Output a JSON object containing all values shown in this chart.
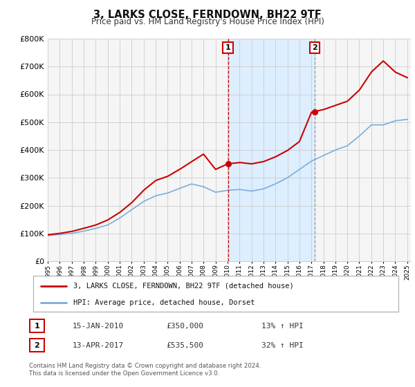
{
  "title": "3, LARKS CLOSE, FERNDOWN, BH22 9TF",
  "subtitle": "Price paid vs. HM Land Registry's House Price Index (HPI)",
  "ylim": [
    0,
    800000
  ],
  "yticks": [
    0,
    100000,
    200000,
    300000,
    400000,
    500000,
    600000,
    700000,
    800000
  ],
  "ytick_labels": [
    "£0",
    "£100K",
    "£200K",
    "£300K",
    "£400K",
    "£500K",
    "£600K",
    "£700K",
    "£800K"
  ],
  "x_start_year": 1995,
  "x_end_year": 2025,
  "legend_label_red": "3, LARKS CLOSE, FERNDOWN, BH22 9TF (detached house)",
  "legend_label_blue": "HPI: Average price, detached house, Dorset",
  "annotation1_date": "15-JAN-2010",
  "annotation1_price": "£350,000",
  "annotation1_pct": "13% ↑ HPI",
  "annotation1_year": 2010.04,
  "annotation1_value": 350000,
  "annotation2_date": "13-APR-2017",
  "annotation2_price": "£535,500",
  "annotation2_pct": "32% ↑ HPI",
  "annotation2_year": 2017.28,
  "annotation2_value": 535500,
  "red_color": "#cc0000",
  "blue_color": "#7aadda",
  "shade_color": "#ddeeff",
  "grid_color": "#cccccc",
  "bg_color": "#f5f5f5",
  "hpi_keypoints": [
    [
      1995,
      92000
    ],
    [
      1996,
      96000
    ],
    [
      1997,
      100000
    ],
    [
      1998,
      108000
    ],
    [
      1999,
      118000
    ],
    [
      2000,
      130000
    ],
    [
      2001,
      155000
    ],
    [
      2002,
      185000
    ],
    [
      2003,
      215000
    ],
    [
      2004,
      235000
    ],
    [
      2005,
      245000
    ],
    [
      2006,
      262000
    ],
    [
      2007,
      278000
    ],
    [
      2008,
      268000
    ],
    [
      2009,
      248000
    ],
    [
      2010,
      255000
    ],
    [
      2011,
      258000
    ],
    [
      2012,
      252000
    ],
    [
      2013,
      260000
    ],
    [
      2014,
      278000
    ],
    [
      2015,
      300000
    ],
    [
      2016,
      330000
    ],
    [
      2017,
      360000
    ],
    [
      2018,
      380000
    ],
    [
      2019,
      400000
    ],
    [
      2020,
      415000
    ],
    [
      2021,
      450000
    ],
    [
      2022,
      490000
    ],
    [
      2023,
      490000
    ],
    [
      2024,
      505000
    ],
    [
      2025,
      510000
    ]
  ],
  "price_keypoints": [
    [
      1995,
      95000
    ],
    [
      1996,
      100000
    ],
    [
      1997,
      107000
    ],
    [
      1998,
      118000
    ],
    [
      1999,
      130000
    ],
    [
      2000,
      148000
    ],
    [
      2001,
      175000
    ],
    [
      2002,
      210000
    ],
    [
      2003,
      255000
    ],
    [
      2004,
      290000
    ],
    [
      2005,
      305000
    ],
    [
      2006,
      330000
    ],
    [
      2007,
      358000
    ],
    [
      2008,
      385000
    ],
    [
      2009,
      330000
    ],
    [
      2010,
      350000
    ],
    [
      2011,
      355000
    ],
    [
      2012,
      350000
    ],
    [
      2013,
      358000
    ],
    [
      2014,
      375000
    ],
    [
      2015,
      398000
    ],
    [
      2016,
      430000
    ],
    [
      2017,
      535500
    ],
    [
      2018,
      545000
    ],
    [
      2019,
      560000
    ],
    [
      2020,
      575000
    ],
    [
      2021,
      615000
    ],
    [
      2022,
      680000
    ],
    [
      2023,
      720000
    ],
    [
      2024,
      680000
    ],
    [
      2025,
      660000
    ]
  ],
  "footnote": "Contains HM Land Registry data © Crown copyright and database right 2024.\nThis data is licensed under the Open Government Licence v3.0."
}
